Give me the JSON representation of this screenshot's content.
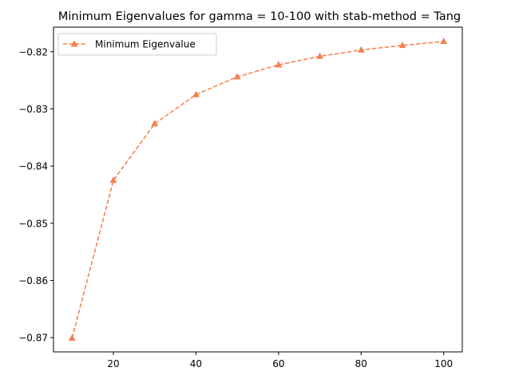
{
  "chart_data": {
    "type": "line",
    "title": "Minimum Eigenvalues for gamma = 10-100 with stab-method = Tang",
    "xlabel": "",
    "ylabel": "",
    "x": [
      10,
      20,
      30,
      40,
      50,
      60,
      70,
      80,
      90,
      100
    ],
    "series": [
      {
        "name": "Minimum Eigenvalue",
        "values": [
          -0.8701,
          -0.8425,
          -0.8326,
          -0.8275,
          -0.8244,
          -0.8223,
          -0.8208,
          -0.8197,
          -0.8189,
          -0.8182
        ],
        "color": "#f47f4e",
        "line_style": "dashed",
        "marker": "triangle-up"
      }
    ],
    "xlim": [
      5.5,
      104.5
    ],
    "ylim": [
      -0.8725,
      -0.8157
    ],
    "x_ticks": [
      20,
      40,
      60,
      80,
      100
    ],
    "y_ticks": [
      -0.87,
      -0.86,
      -0.85,
      -0.84,
      -0.83,
      -0.82
    ],
    "x_tick_labels": [
      "20",
      "40",
      "60",
      "80",
      "100"
    ],
    "y_tick_labels": [
      "−0.87",
      "−0.86",
      "−0.85",
      "−0.84",
      "−0.83",
      "−0.82"
    ],
    "grid": false,
    "legend_position": "upper-left"
  }
}
